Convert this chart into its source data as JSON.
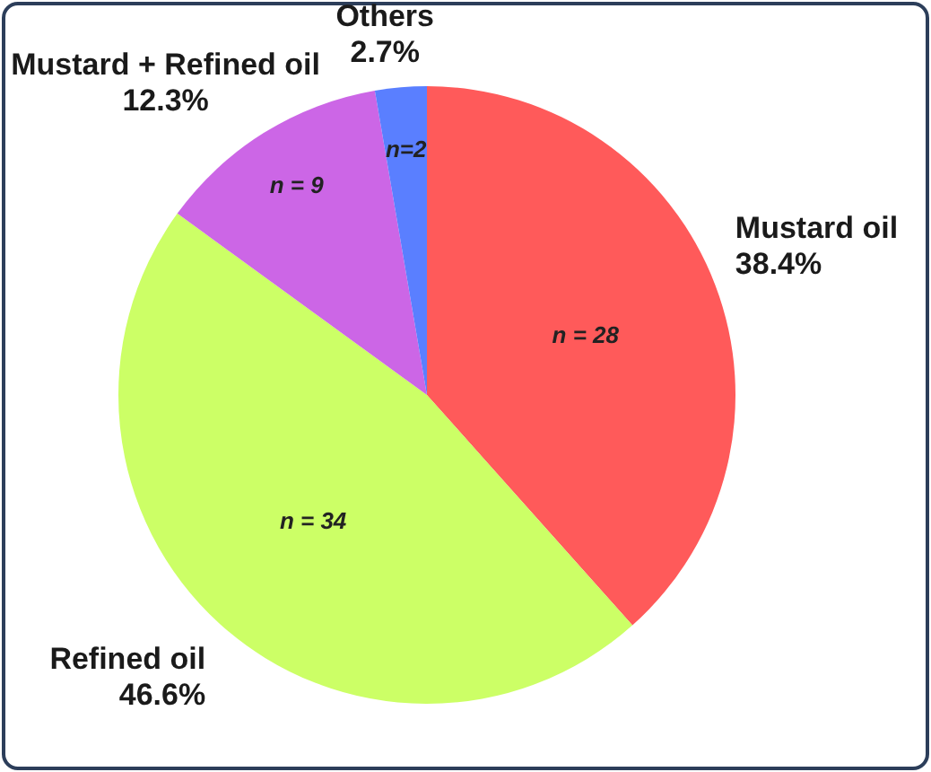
{
  "chart_data": {
    "type": "pie",
    "categories": [
      "Mustard oil",
      "Refined oil",
      "Mustard + Refined oil",
      "Others"
    ],
    "values": [
      38.4,
      46.6,
      12.3,
      2.7
    ],
    "colors": [
      "#ff5a5a",
      "#ccff66",
      "#cc66e6",
      "#5a7fff"
    ],
    "value_labels": [
      "38.4%",
      "46.6%",
      "12.3%",
      "2.7%"
    ],
    "annotations": [
      "n = 28",
      "n = 34",
      "n = 9",
      "n=2"
    ]
  }
}
